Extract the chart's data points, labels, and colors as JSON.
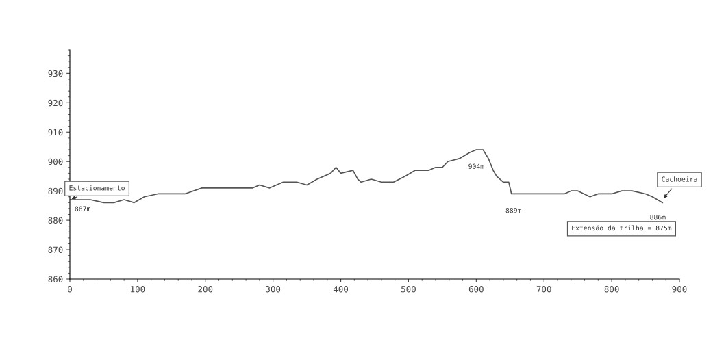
{
  "chart_data": {
    "type": "line",
    "x": [
      0,
      30,
      40,
      50,
      65,
      80,
      95,
      110,
      130,
      170,
      195,
      270,
      280,
      295,
      315,
      335,
      350,
      365,
      385,
      393,
      400,
      418,
      425,
      430,
      445,
      460,
      478,
      495,
      510,
      530,
      540,
      550,
      558,
      575,
      590,
      600,
      610,
      618,
      625,
      630,
      640,
      648,
      652,
      655,
      730,
      740,
      750,
      768,
      780,
      800,
      815,
      830,
      850,
      860,
      875
    ],
    "series": [
      {
        "color": "#555555",
        "values": [
          887,
          887,
          886.5,
          886,
          886,
          887,
          886,
          888,
          889,
          889,
          891,
          891,
          892,
          891,
          893,
          893,
          892,
          894,
          896,
          898,
          896,
          897,
          894,
          893,
          894,
          893,
          893,
          895,
          897,
          897,
          898,
          898,
          900,
          901,
          903,
          904,
          904,
          901,
          897,
          895,
          893,
          893,
          889,
          889,
          889,
          890,
          890,
          888,
          889,
          889,
          890,
          890,
          889,
          888,
          886
        ]
      }
    ],
    "xlim": [
      0,
      900
    ],
    "xticks": [
      0,
      100,
      200,
      300,
      400,
      500,
      600,
      700,
      800,
      900
    ],
    "ylim": [
      860,
      938
    ],
    "yticks": [
      860,
      870,
      880,
      890,
      900,
      910,
      920,
      930
    ],
    "grid": false,
    "marker": "none",
    "line_style": "solid",
    "annotations": [
      {
        "text": "Estacionamento",
        "x": 0,
        "y": 887
      },
      {
        "text": "887m",
        "x": 0,
        "y": 887
      },
      {
        "text": "904m",
        "x": 600,
        "y": 904
      },
      {
        "text": "889m",
        "x": 655,
        "y": 889
      },
      {
        "text": "886m",
        "x": 875,
        "y": 886
      },
      {
        "text": "Cachoeira",
        "x": 875,
        "y": 887
      },
      "Extensão da trilha = 875m"
    ]
  }
}
